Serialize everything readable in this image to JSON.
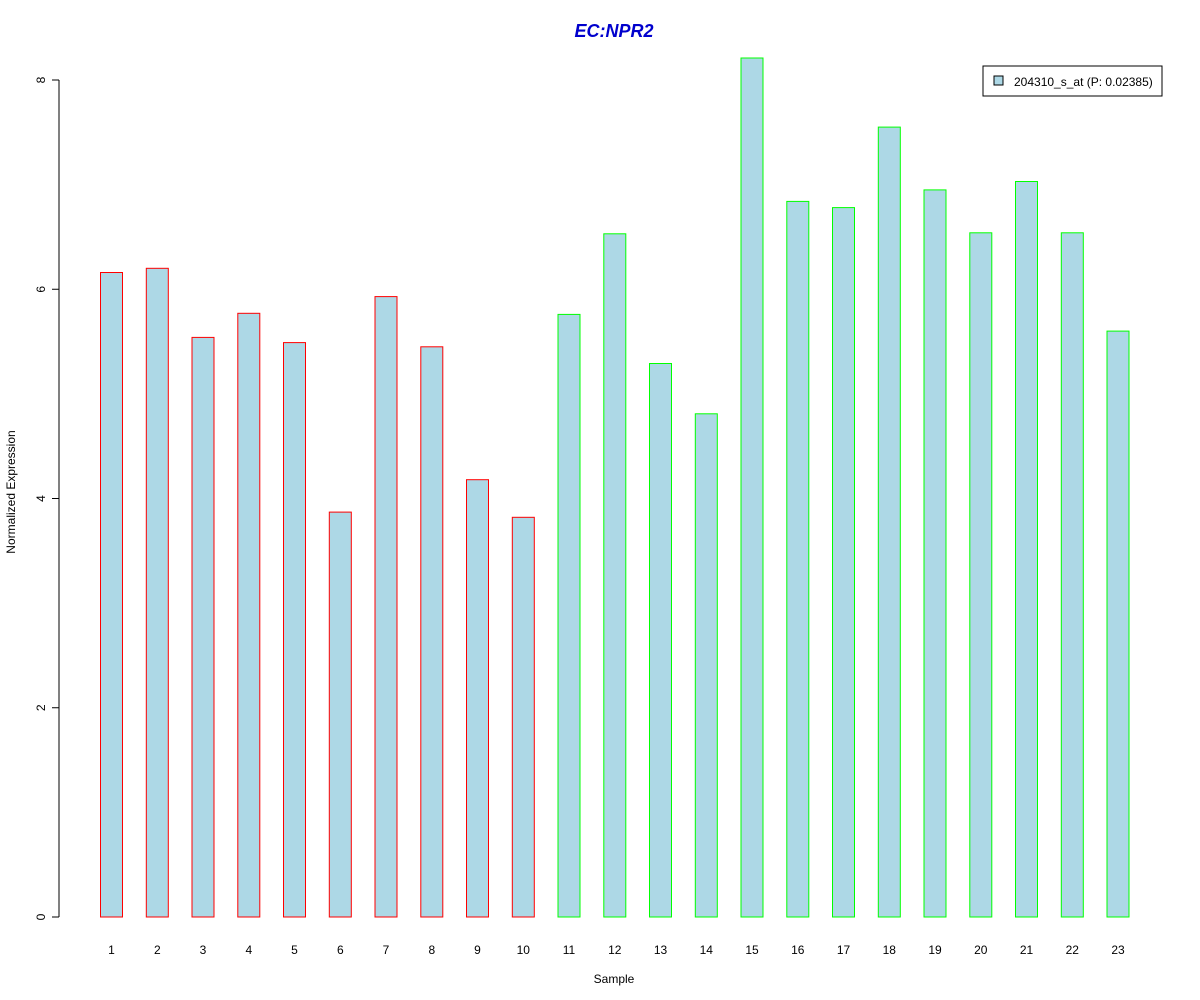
{
  "chart_data": {
    "type": "bar",
    "title": "EC:NPR2",
    "xlabel": "Sample",
    "ylabel": "Normalized Expression",
    "categories": [
      "1",
      "2",
      "3",
      "4",
      "5",
      "6",
      "7",
      "8",
      "9",
      "10",
      "11",
      "12",
      "13",
      "14",
      "15",
      "16",
      "17",
      "18",
      "19",
      "20",
      "21",
      "22",
      "23"
    ],
    "values": [
      6.16,
      6.2,
      5.54,
      5.77,
      5.49,
      3.87,
      5.93,
      5.45,
      4.18,
      3.82,
      5.76,
      6.53,
      5.29,
      4.81,
      8.21,
      6.84,
      6.78,
      7.55,
      6.95,
      6.54,
      7.03,
      6.54,
      5.6
    ],
    "groups": [
      "red",
      "red",
      "red",
      "red",
      "red",
      "red",
      "red",
      "red",
      "red",
      "red",
      "green",
      "green",
      "green",
      "green",
      "green",
      "green",
      "green",
      "green",
      "green",
      "green",
      "green",
      "green",
      "green"
    ],
    "ylim": [
      0,
      8
    ],
    "yticks": [
      0,
      2,
      4,
      6,
      8
    ],
    "grid": false,
    "legend": {
      "placement": "top-right",
      "label": "204310_s_at (P: 0.02385)"
    },
    "colors": {
      "bar_fill": "#add8e6",
      "border_red": "#ff0000",
      "border_green": "#00ff00",
      "title": "#0000cd"
    }
  }
}
